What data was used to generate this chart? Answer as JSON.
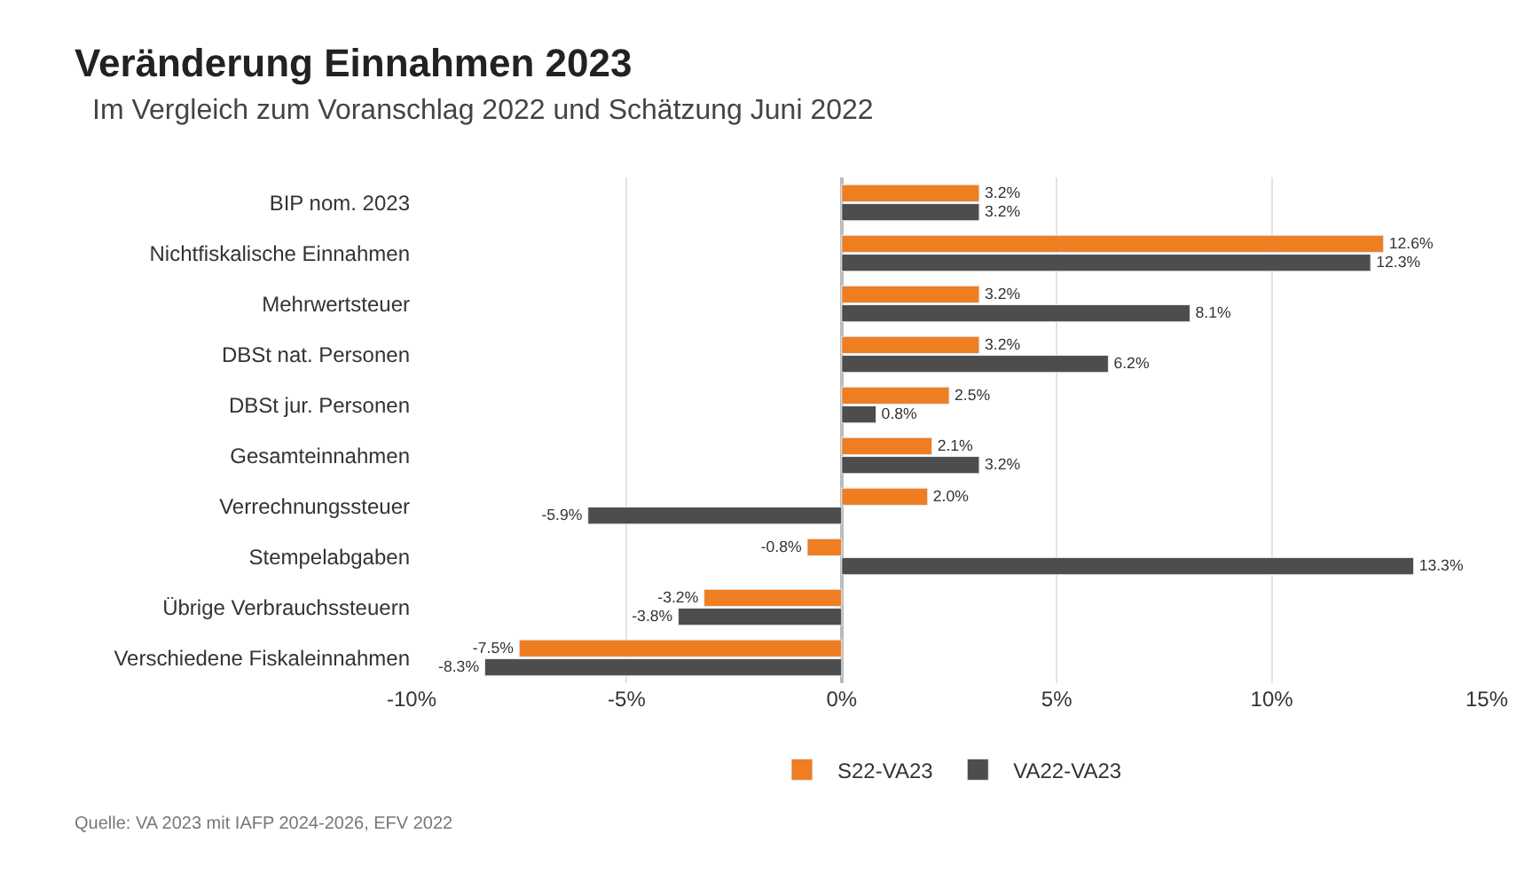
{
  "chart_data": {
    "type": "bar",
    "orientation": "horizontal",
    "title": "Veränderung Einnahmen 2023",
    "subtitle": "Im Vergleich zum Voranschlag 2022 und Schätzung Juni 2022",
    "categories": [
      "BIP nom. 2023",
      "Nichtfiskalische Einnahmen",
      "Mehrwertsteuer",
      "DBSt nat. Personen",
      "DBSt jur. Personen",
      "Gesamteinnahmen",
      "Verrechnungssteuer",
      "Stempelabgaben",
      "Übrige Verbrauchssteuern",
      "Verschiedene Fiskaleinnahmen"
    ],
    "series": [
      {
        "name": "S22-VA23",
        "color": "#ef7d22",
        "values": [
          3.2,
          12.6,
          3.2,
          3.2,
          2.5,
          2.1,
          2.0,
          -0.8,
          -3.2,
          -7.5
        ],
        "value_labels": [
          "3.2%",
          "12.6%",
          "3.2%",
          "3.2%",
          "2.5%",
          "2.1%",
          "2.0%",
          "-0.8%",
          "-3.2%",
          "-7.5%"
        ]
      },
      {
        "name": "VA22-VA23",
        "color": "#4d4d4d",
        "values": [
          3.2,
          12.3,
          8.1,
          6.2,
          0.8,
          3.2,
          -5.9,
          13.3,
          -3.8,
          -8.3
        ],
        "value_labels": [
          "3.2%",
          "12.3%",
          "8.1%",
          "6.2%",
          "0.8%",
          "3.2%",
          "-5.9%",
          "13.3%",
          "-3.8%",
          "-8.3%"
        ]
      }
    ],
    "xlim": [
      -10,
      15
    ],
    "xticks": [
      {
        "value": -10,
        "label": "-10%"
      },
      {
        "value": -5,
        "label": "-5%"
      },
      {
        "value": 0,
        "label": "0%"
      },
      {
        "value": 5,
        "label": "5%"
      },
      {
        "value": 10,
        "label": "10%"
      },
      {
        "value": 15,
        "label": "15%"
      }
    ],
    "grid": "x",
    "legend": "bottom",
    "annotations": [
      "Quelle: VA 2023 mit IAFP 2024-2026, EFV 2022"
    ]
  }
}
